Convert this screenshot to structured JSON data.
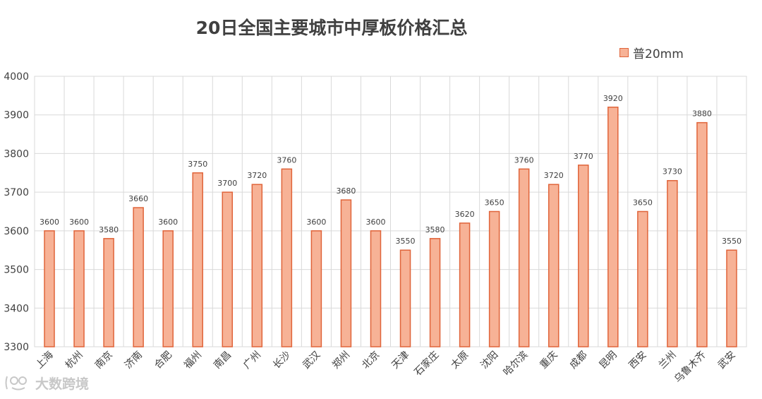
{
  "chart_data": {
    "type": "bar",
    "title": "20日全国主要城市中厚板价格汇总",
    "categories": [
      "上海",
      "杭州",
      "南京",
      "济南",
      "合肥",
      "福州",
      "南昌",
      "广州",
      "长沙",
      "武汉",
      "郑州",
      "北京",
      "天津",
      "石家庄",
      "太原",
      "沈阳",
      "哈尔滨",
      "重庆",
      "成都",
      "昆明",
      "西安",
      "兰州",
      "乌鲁木齐",
      "武安"
    ],
    "series": [
      {
        "name": "普20mm",
        "values": [
          3600,
          3600,
          3580,
          3660,
          3600,
          3750,
          3700,
          3720,
          3760,
          3600,
          3680,
          3600,
          3550,
          3580,
          3620,
          3650,
          3760,
          3720,
          3770,
          3920,
          3650,
          3730,
          3880,
          3550
        ]
      }
    ],
    "yticks": [
      3300,
      3400,
      3500,
      3600,
      3700,
      3800,
      3900,
      4000
    ],
    "ylim": [
      3300,
      4000
    ],
    "xlabel": "",
    "ylabel": "",
    "grid": true,
    "legend_position": "top-right"
  },
  "colors": {
    "bar_fill": "#f7b296",
    "bar_stroke": "#e0643a",
    "grid": "#d9d9d9",
    "axis_text": "#404040",
    "value_label": "#404040",
    "watermark": "#c8c8c8"
  },
  "watermark": {
    "text": "大数跨境",
    "icon": "logo-glyph-icon"
  }
}
